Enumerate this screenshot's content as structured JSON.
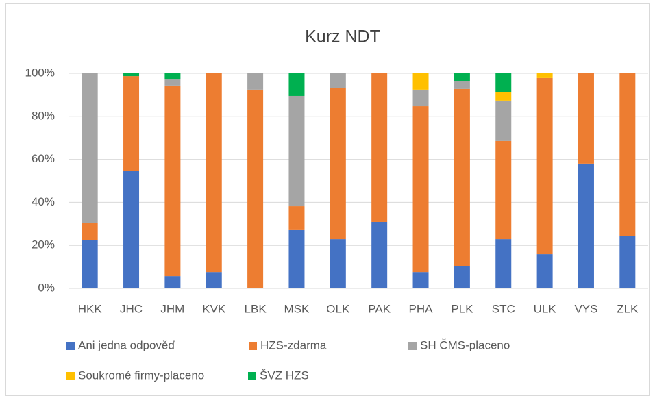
{
  "chart_data": {
    "type": "stacked_bar",
    "title": "Kurz NDT",
    "categories": [
      "HKK",
      "JHC",
      "JHM",
      "KVK",
      "LBK",
      "MSK",
      "OLK",
      "PAK",
      "PHA",
      "PLK",
      "STC",
      "ULK",
      "VYS",
      "ZLK"
    ],
    "series": [
      {
        "name": "Ani jedna odpověď",
        "color": "#4472c4",
        "values": [
          22.6,
          54.5,
          5.7,
          7.6,
          0,
          27.1,
          22.9,
          30.9,
          7.6,
          10.5,
          22.9,
          15.9,
          58,
          24.5
        ]
      },
      {
        "name": "HZS-zdarma",
        "color": "#ed7d31",
        "values": [
          7.7,
          44.2,
          88.6,
          92.4,
          92.4,
          11.1,
          70.4,
          69.1,
          77.1,
          82.2,
          45.6,
          81.9,
          42,
          75.5
        ]
      },
      {
        "name": "SH ČMS-placeno",
        "color": "#a5a5a5",
        "values": [
          69.7,
          0,
          2.8,
          0,
          7.6,
          51.3,
          6.7,
          0,
          7.7,
          3.8,
          18.8,
          0,
          0,
          0
        ]
      },
      {
        "name": "Soukromé firmy-placeno",
        "color": "#ffc000",
        "values": [
          0,
          0,
          0,
          0,
          0,
          0,
          0,
          0,
          7.6,
          0,
          4.1,
          2.2,
          0,
          0
        ]
      },
      {
        "name": "ŠVZ HZS",
        "color": "#00b050",
        "values": [
          0,
          1.3,
          2.9,
          0,
          0,
          10.5,
          0,
          0,
          0,
          3.5,
          8.6,
          0,
          0,
          0
        ]
      }
    ],
    "ylim": [
      0,
      100
    ],
    "yticks": [
      {
        "value": 0,
        "label": "0%"
      },
      {
        "value": 20,
        "label": "20%"
      },
      {
        "value": 40,
        "label": "40%"
      },
      {
        "value": 60,
        "label": "60%"
      },
      {
        "value": 80,
        "label": "80%"
      },
      {
        "value": 100,
        "label": "100%"
      }
    ],
    "grid": true,
    "legend": "bottom"
  }
}
